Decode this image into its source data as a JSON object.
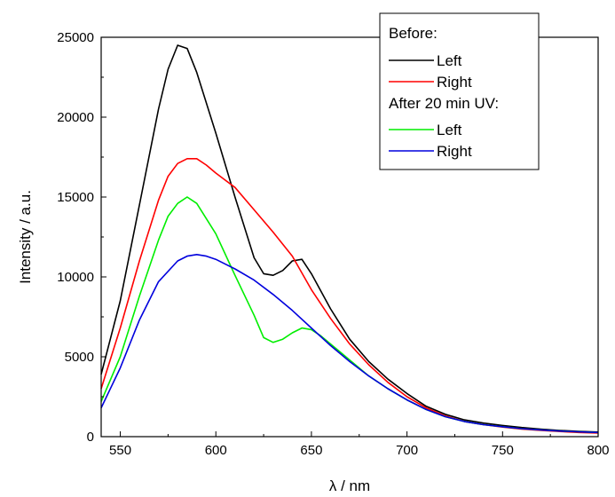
{
  "chart_data": {
    "type": "line",
    "xlabel": "λ / nm",
    "ylabel": "Intensity / a.u.",
    "xlim": [
      540,
      800
    ],
    "ylim": [
      0,
      25000
    ],
    "x_ticks": [
      "550",
      "600",
      "650",
      "700",
      "750",
      "800"
    ],
    "y_ticks": [
      "0",
      "5000",
      "10000",
      "15000",
      "20000",
      "25000"
    ],
    "grid": false,
    "legend": {
      "placement": "top-right",
      "headers": [
        "Before:",
        "After 20 min UV:"
      ]
    },
    "series": [
      {
        "name": "Left",
        "group": "Before:",
        "color": "#000000",
        "points": [
          [
            540,
            3900
          ],
          [
            550,
            8500
          ],
          [
            560,
            14500
          ],
          [
            570,
            20500
          ],
          [
            575,
            23000
          ],
          [
            580,
            24500
          ],
          [
            585,
            24300
          ],
          [
            590,
            22800
          ],
          [
            600,
            19000
          ],
          [
            610,
            15000
          ],
          [
            620,
            11200
          ],
          [
            625,
            10200
          ],
          [
            630,
            10100
          ],
          [
            635,
            10400
          ],
          [
            640,
            11000
          ],
          [
            645,
            11100
          ],
          [
            650,
            10200
          ],
          [
            660,
            8000
          ],
          [
            670,
            6100
          ],
          [
            680,
            4700
          ],
          [
            690,
            3600
          ],
          [
            700,
            2700
          ],
          [
            710,
            1900
          ],
          [
            720,
            1400
          ],
          [
            730,
            1050
          ],
          [
            740,
            850
          ],
          [
            750,
            700
          ],
          [
            760,
            570
          ],
          [
            770,
            470
          ],
          [
            780,
            390
          ],
          [
            790,
            330
          ],
          [
            800,
            290
          ]
        ]
      },
      {
        "name": "Right",
        "group": "Before:",
        "color": "#ff0000",
        "points": [
          [
            540,
            3000
          ],
          [
            550,
            6800
          ],
          [
            560,
            11000
          ],
          [
            570,
            14800
          ],
          [
            575,
            16300
          ],
          [
            580,
            17100
          ],
          [
            585,
            17400
          ],
          [
            590,
            17400
          ],
          [
            595,
            17000
          ],
          [
            600,
            16500
          ],
          [
            610,
            15600
          ],
          [
            620,
            14200
          ],
          [
            630,
            12800
          ],
          [
            640,
            11300
          ],
          [
            650,
            9200
          ],
          [
            660,
            7400
          ],
          [
            670,
            5800
          ],
          [
            680,
            4500
          ],
          [
            690,
            3400
          ],
          [
            700,
            2500
          ],
          [
            710,
            1800
          ],
          [
            720,
            1300
          ],
          [
            730,
            950
          ],
          [
            740,
            750
          ],
          [
            750,
            600
          ],
          [
            760,
            480
          ],
          [
            770,
            390
          ],
          [
            780,
            320
          ],
          [
            790,
            260
          ],
          [
            800,
            220
          ]
        ]
      },
      {
        "name": "Left",
        "group": "After 20 min UV:",
        "color": "#00ee00",
        "points": [
          [
            540,
            2200
          ],
          [
            550,
            5000
          ],
          [
            560,
            8800
          ],
          [
            570,
            12300
          ],
          [
            575,
            13800
          ],
          [
            580,
            14600
          ],
          [
            585,
            15000
          ],
          [
            590,
            14600
          ],
          [
            600,
            12700
          ],
          [
            610,
            10100
          ],
          [
            620,
            7600
          ],
          [
            625,
            6200
          ],
          [
            630,
            5900
          ],
          [
            635,
            6100
          ],
          [
            640,
            6500
          ],
          [
            645,
            6800
          ],
          [
            650,
            6700
          ],
          [
            655,
            6300
          ],
          [
            660,
            5800
          ],
          [
            670,
            4800
          ],
          [
            680,
            3800
          ],
          [
            690,
            3000
          ],
          [
            700,
            2300
          ],
          [
            710,
            1700
          ],
          [
            720,
            1250
          ],
          [
            730,
            950
          ],
          [
            740,
            750
          ],
          [
            750,
            620
          ],
          [
            760,
            500
          ],
          [
            770,
            420
          ],
          [
            780,
            350
          ],
          [
            790,
            300
          ],
          [
            800,
            260
          ]
        ]
      },
      {
        "name": "Right",
        "group": "After 20 min UV:",
        "color": "#0000dd",
        "points": [
          [
            540,
            1800
          ],
          [
            550,
            4300
          ],
          [
            560,
            7300
          ],
          [
            570,
            9700
          ],
          [
            580,
            11000
          ],
          [
            585,
            11300
          ],
          [
            590,
            11400
          ],
          [
            595,
            11300
          ],
          [
            600,
            11100
          ],
          [
            610,
            10500
          ],
          [
            620,
            9800
          ],
          [
            630,
            8900
          ],
          [
            640,
            7900
          ],
          [
            650,
            6800
          ],
          [
            660,
            5700
          ],
          [
            670,
            4700
          ],
          [
            680,
            3800
          ],
          [
            690,
            3000
          ],
          [
            700,
            2300
          ],
          [
            710,
            1700
          ],
          [
            720,
            1250
          ],
          [
            730,
            950
          ],
          [
            740,
            750
          ],
          [
            750,
            620
          ],
          [
            760,
            500
          ],
          [
            770,
            420
          ],
          [
            780,
            350
          ],
          [
            790,
            300
          ],
          [
            800,
            260
          ]
        ]
      }
    ]
  }
}
